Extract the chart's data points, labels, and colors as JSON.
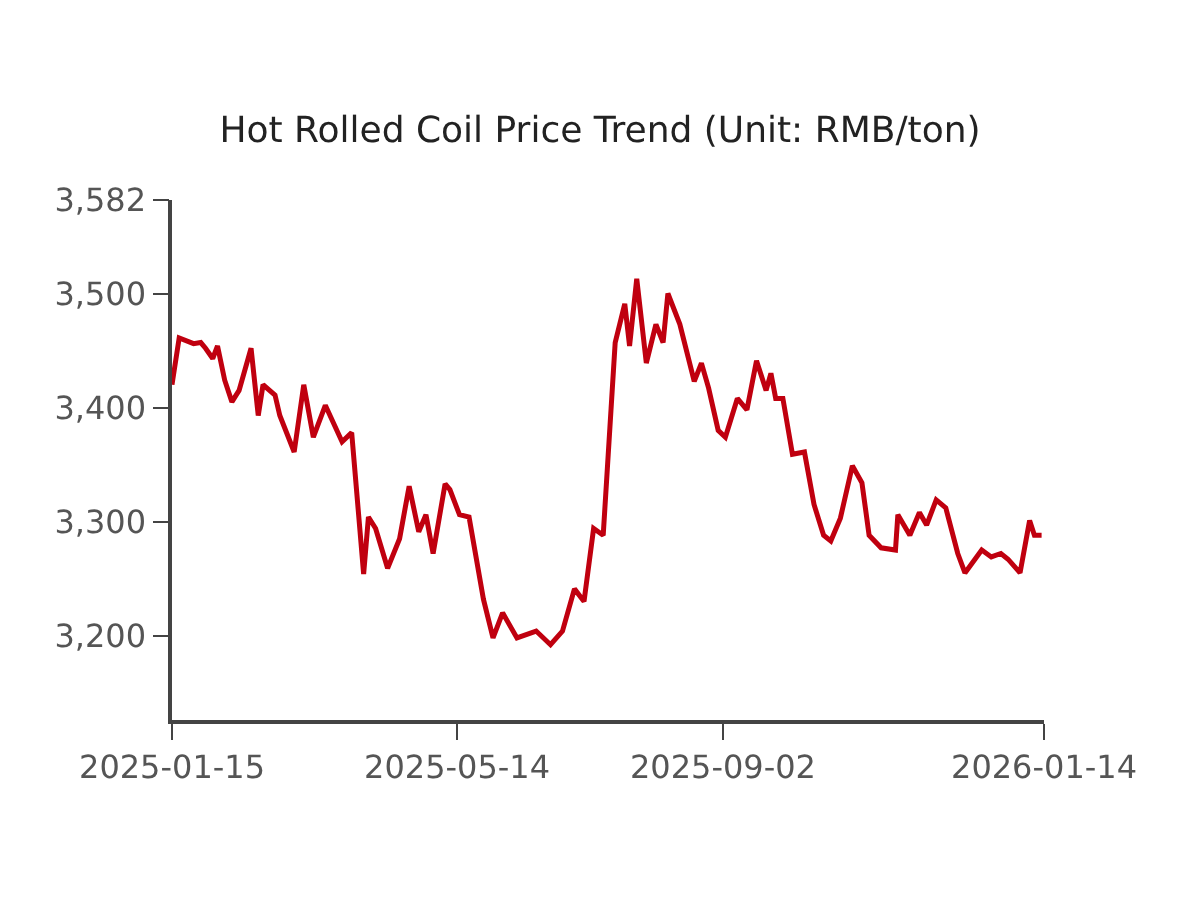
{
  "chart_data": {
    "type": "line",
    "title": "Hot Rolled Coil Price Trend (Unit: RMB/ton)",
    "x": [
      "2025-01-15",
      "2025-01-18",
      "2025-01-24",
      "2025-01-27",
      "2025-01-29",
      "2025-02-01",
      "2025-02-03",
      "2025-02-06",
      "2025-02-09",
      "2025-02-12",
      "2025-02-17",
      "2025-02-20",
      "2025-02-22",
      "2025-02-27",
      "2025-03-01",
      "2025-03-07",
      "2025-03-11",
      "2025-03-15",
      "2025-03-20",
      "2025-03-27",
      "2025-03-31",
      "2025-04-05",
      "2025-04-07",
      "2025-04-10",
      "2025-04-15",
      "2025-04-20",
      "2025-04-24",
      "2025-04-28",
      "2025-05-01",
      "2025-05-04",
      "2025-05-09",
      "2025-05-11",
      "2025-05-15",
      "2025-05-19",
      "2025-05-25",
      "2025-05-29",
      "2025-06-02",
      "2025-06-08",
      "2025-06-16",
      "2025-06-22",
      "2025-06-27",
      "2025-07-02",
      "2025-07-06",
      "2025-07-10",
      "2025-07-14",
      "2025-07-19",
      "2025-07-23",
      "2025-07-25",
      "2025-07-28",
      "2025-08-01",
      "2025-08-05",
      "2025-08-08",
      "2025-08-10",
      "2025-08-15",
      "2025-08-21",
      "2025-08-24",
      "2025-08-27",
      "2025-08-31",
      "2025-09-03",
      "2025-09-08",
      "2025-09-12",
      "2025-09-16",
      "2025-09-20",
      "2025-09-22",
      "2025-09-24",
      "2025-09-27",
      "2025-10-01",
      "2025-10-06",
      "2025-10-10",
      "2025-10-14",
      "2025-10-17",
      "2025-10-21",
      "2025-10-26",
      "2025-10-30",
      "2025-11-02",
      "2025-11-07",
      "2025-11-13",
      "2025-11-14",
      "2025-11-19",
      "2025-11-23",
      "2025-11-26",
      "2025-11-30",
      "2025-12-04",
      "2025-12-09",
      "2025-12-12",
      "2025-12-19",
      "2025-12-23",
      "2025-12-27",
      "2025-12-30",
      "2026-01-04",
      "2026-01-08",
      "2026-01-10",
      "2026-01-13"
    ],
    "series": [
      {
        "color": "#c0000f",
        "values": [
          3420,
          3461,
          3456,
          3457,
          3452,
          3443,
          3454,
          3424,
          3405,
          3415,
          3452,
          3393,
          3420,
          3411,
          3393,
          3361,
          3420,
          3374,
          3402,
          3370,
          3378,
          3254,
          3304,
          3294,
          3259,
          3285,
          3331,
          3291,
          3306,
          3272,
          3333,
          3328,
          3306,
          3304,
          3232,
          3198,
          3220,
          3198,
          3204,
          3192,
          3204,
          3241,
          3230,
          3294,
          3288,
          3457,
          3491,
          3454,
          3513,
          3439,
          3473,
          3457,
          3500,
          3473,
          3423,
          3439,
          3417,
          3380,
          3374,
          3408,
          3398,
          3441,
          3415,
          3430,
          3408,
          3408,
          3359,
          3361,
          3315,
          3288,
          3283,
          3303,
          3349,
          3334,
          3288,
          3277,
          3275,
          3306,
          3288,
          3308,
          3297,
          3319,
          3312,
          3272,
          3255,
          3275,
          3269,
          3272,
          3267,
          3255,
          3301,
          3288,
          3288
        ]
      }
    ],
    "xlim": [
      "2025-01-15",
      "2026-01-14"
    ],
    "xticks": [
      "2025-01-15",
      "2025-05-14",
      "2025-09-02",
      "2026-01-14"
    ],
    "ylim": [
      3126,
      3582
    ],
    "yticks": [
      {
        "value": 3200,
        "label": "3,200"
      },
      {
        "value": 3300,
        "label": "3,300"
      },
      {
        "value": 3400,
        "label": "3,400"
      },
      {
        "value": 3500,
        "label": "3,500"
      },
      {
        "value": 3582,
        "label": "3,582"
      }
    ],
    "marker": "none",
    "line_style": "solid"
  }
}
